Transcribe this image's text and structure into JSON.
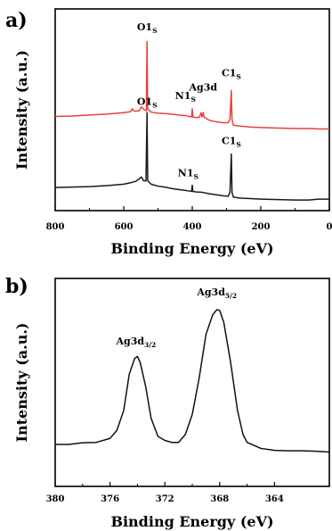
{
  "chart_data": [
    {
      "panel_label": "a)",
      "type": "line",
      "xlabel": "Binding Energy (eV)",
      "ylabel": "Intensity (a.u.)",
      "xlim": [
        800,
        0
      ],
      "x_reversed": true,
      "xticks": [
        800,
        600,
        400,
        200,
        0
      ],
      "y_ticks_shown": false,
      "series_colors": [
        "#e8413c",
        "#1a1a1a"
      ],
      "series": [
        {
          "color": "#e8413c",
          "points": [
            [
              800,
              1.96
            ],
            [
              750,
              1.97
            ],
            [
              700,
              1.99
            ],
            [
              650,
              2.01
            ],
            [
              600,
              2.04
            ],
            [
              580,
              2.06
            ],
            [
              575,
              2.12
            ],
            [
              570,
              2.07
            ],
            [
              555,
              2.08
            ],
            [
              548,
              2.16
            ],
            [
              540,
              2.1
            ],
            [
              534,
              2.08
            ],
            [
              532,
              3.52
            ],
            [
              530,
              2.12
            ],
            [
              520,
              2.05
            ],
            [
              500,
              2.03
            ],
            [
              480,
              2.02
            ],
            [
              460,
              2.01
            ],
            [
              440,
              1.99
            ],
            [
              420,
              1.98
            ],
            [
              410,
              1.96
            ],
            [
              402,
              1.95
            ],
            [
              400,
              2.12
            ],
            [
              398,
              1.95
            ],
            [
              390,
              1.94
            ],
            [
              380,
              1.94
            ],
            [
              374,
              2.04
            ],
            [
              372,
              1.95
            ],
            [
              368,
              2.04
            ],
            [
              366,
              1.95
            ],
            [
              350,
              1.88
            ],
            [
              330,
              1.85
            ],
            [
              310,
              1.83
            ],
            [
              295,
              1.83
            ],
            [
              290,
              1.9
            ],
            [
              286,
              2.5
            ],
            [
              284,
              1.9
            ],
            [
              280,
              1.78
            ],
            [
              260,
              1.76
            ],
            [
              230,
              1.74
            ],
            [
              200,
              1.73
            ],
            [
              150,
              1.72
            ],
            [
              100,
              1.71
            ],
            [
              60,
              1.71
            ],
            [
              30,
              1.7
            ],
            [
              0,
              1.7
            ]
          ]
        },
        {
          "color": "#1a1a1a",
          "points": [
            [
              800,
              0.48
            ],
            [
              750,
              0.49
            ],
            [
              700,
              0.5
            ],
            [
              650,
              0.52
            ],
            [
              600,
              0.55
            ],
            [
              580,
              0.58
            ],
            [
              565,
              0.61
            ],
            [
              555,
              0.66
            ],
            [
              548,
              0.7
            ],
            [
              542,
              0.62
            ],
            [
              535,
              0.62
            ],
            [
              532,
              2.04
            ],
            [
              530,
              0.62
            ],
            [
              520,
              0.55
            ],
            [
              500,
              0.51
            ],
            [
              480,
              0.49
            ],
            [
              460,
              0.46
            ],
            [
              440,
              0.44
            ],
            [
              420,
              0.42
            ],
            [
              410,
              0.41
            ],
            [
              402,
              0.4
            ],
            [
              400,
              0.53
            ],
            [
              398,
              0.4
            ],
            [
              390,
              0.39
            ],
            [
              370,
              0.38
            ],
            [
              350,
              0.35
            ],
            [
              330,
              0.33
            ],
            [
              310,
              0.31
            ],
            [
              295,
              0.3
            ],
            [
              290,
              0.38
            ],
            [
              286,
              1.18
            ],
            [
              284,
              0.38
            ],
            [
              280,
              0.28
            ],
            [
              260,
              0.26
            ],
            [
              230,
              0.25
            ],
            [
              200,
              0.24
            ],
            [
              150,
              0.23
            ],
            [
              100,
              0.22
            ],
            [
              60,
              0.22
            ],
            [
              30,
              0.24
            ],
            [
              0,
              0.24
            ]
          ]
        }
      ],
      "annotations": [
        {
          "text": "O1",
          "sub": "S",
          "x": 532,
          "y": 3.75
        },
        {
          "text": "N1",
          "sub": "S",
          "x": 420,
          "y": 2.32
        },
        {
          "text": "Ag3d",
          "sub": "",
          "x": 368,
          "y": 2.5
        },
        {
          "text": "C1",
          "sub": "S",
          "x": 286,
          "y": 2.8
        },
        {
          "text": "O1",
          "sub": "S",
          "x": 532,
          "y": 2.2
        },
        {
          "text": "N1",
          "sub": "S",
          "x": 412,
          "y": 0.72
        },
        {
          "text": "C1",
          "sub": "S",
          "x": 286,
          "y": 1.38
        }
      ],
      "ylim": [
        0,
        4.2
      ]
    },
    {
      "panel_label": "b)",
      "type": "line",
      "xlabel": "Binding Energy (eV)",
      "ylabel": "Intensity (a.u.)",
      "xlim": [
        380,
        360
      ],
      "x_reversed": true,
      "xticks": [
        380,
        376,
        372,
        368,
        364
      ],
      "y_ticks_shown": false,
      "series_colors": [
        "#111111"
      ],
      "series": [
        {
          "color": "#111111",
          "points": [
            [
              380,
              1.05
            ],
            [
              379,
              1.05
            ],
            [
              378,
              1.09
            ],
            [
              377,
              1.1
            ],
            [
              376,
              1.2
            ],
            [
              375.5,
              1.4
            ],
            [
              375,
              1.9
            ],
            [
              374.6,
              2.8
            ],
            [
              374.2,
              3.2
            ],
            [
              374.0,
              3.25
            ],
            [
              373.8,
              3.1
            ],
            [
              373.4,
              2.5
            ],
            [
              373,
              1.7
            ],
            [
              372.5,
              1.25
            ],
            [
              372,
              1.15
            ],
            [
              371.5,
              1.1
            ],
            [
              371,
              1.1
            ],
            [
              370.5,
              1.3
            ],
            [
              370,
              1.8
            ],
            [
              369.5,
              2.7
            ],
            [
              369,
              3.8
            ],
            [
              368.5,
              4.3
            ],
            [
              368.2,
              4.42
            ],
            [
              368.0,
              4.4
            ],
            [
              367.7,
              4.1
            ],
            [
              367.2,
              3.1
            ],
            [
              366.7,
              1.9
            ],
            [
              366.3,
              1.3
            ],
            [
              366,
              1.1
            ],
            [
              365,
              0.95
            ],
            [
              364,
              0.9
            ],
            [
              363,
              0.89
            ],
            [
              362,
              0.89
            ],
            [
              361,
              0.88
            ],
            [
              360,
              0.86
            ]
          ]
        }
      ],
      "annotations": [
        {
          "text": "Ag3d",
          "sub": "3/2",
          "x": 374.1,
          "y": 3.55
        },
        {
          "text": "Ag3d",
          "sub": "5/2",
          "x": 368.2,
          "y": 4.78
        }
      ],
      "ylim": [
        0,
        5.2
      ]
    }
  ]
}
